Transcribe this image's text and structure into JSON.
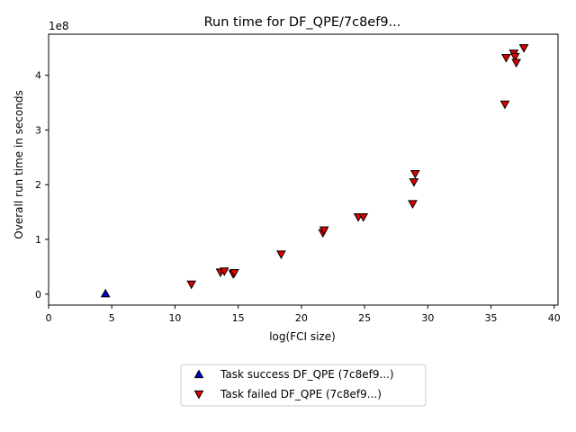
{
  "chart_data": {
    "type": "scatter",
    "title": "Run time for DF_QPE/7c8ef9...",
    "xlabel": "log(FCI size)",
    "ylabel": "Overall run time in seconds",
    "y_offset_label": "1e8",
    "xlim": [
      0,
      40.3
    ],
    "ylim": [
      -0.2,
      4.75
    ],
    "y_unit_multiplier": 100000000,
    "x_ticks": [
      0,
      5,
      10,
      15,
      20,
      25,
      30,
      35,
      40
    ],
    "y_ticks": [
      0,
      1,
      2,
      3,
      4
    ],
    "grid": false,
    "legend_placement": "below-center",
    "series": [
      {
        "name": "Task success DF_QPE (7c8ef9...)",
        "marker": "triangle-up",
        "color": "#0000cc",
        "points": [
          [
            4.5,
            0.01
          ]
        ]
      },
      {
        "name": "Task failed DF_QPE (7c8ef9...)",
        "marker": "triangle-down",
        "color": "#dd0000",
        "points": [
          [
            11.3,
            0.18
          ],
          [
            13.6,
            0.4
          ],
          [
            13.9,
            0.42
          ],
          [
            14.6,
            0.37
          ],
          [
            14.7,
            0.39
          ],
          [
            18.4,
            0.73
          ],
          [
            21.7,
            1.12
          ],
          [
            21.8,
            1.17
          ],
          [
            24.5,
            1.41
          ],
          [
            24.9,
            1.41
          ],
          [
            28.8,
            1.65
          ],
          [
            28.9,
            2.05
          ],
          [
            29.0,
            2.2
          ],
          [
            36.1,
            3.47
          ],
          [
            36.2,
            4.32
          ],
          [
            36.8,
            4.4
          ],
          [
            36.9,
            4.34
          ],
          [
            37.0,
            4.23
          ],
          [
            37.6,
            4.5
          ]
        ]
      }
    ]
  }
}
